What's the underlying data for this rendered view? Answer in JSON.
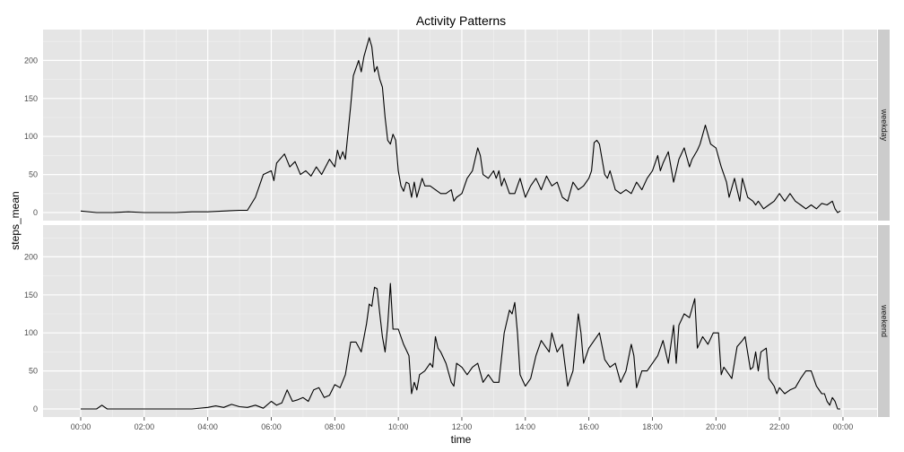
{
  "chart_data": {
    "type": "line",
    "title": "Activity Patterns",
    "xlabel": "time",
    "ylabel": "steps_mean",
    "xlim": [
      "00:00",
      "23:55"
    ],
    "ylim": [
      0,
      240
    ],
    "x_ticks": [
      "00:00",
      "02:00",
      "04:00",
      "06:00",
      "08:00",
      "10:00",
      "12:00",
      "14:00",
      "16:00",
      "18:00",
      "20:00",
      "22:00",
      "00:00"
    ],
    "y_ticks": [
      0,
      50,
      100,
      150,
      200
    ],
    "grid": true,
    "facets": [
      {
        "name": "weekday",
        "points": [
          [
            "00:00",
            2
          ],
          [
            "00:30",
            0
          ],
          [
            "01:00",
            0
          ],
          [
            "01:30",
            1
          ],
          [
            "02:00",
            0
          ],
          [
            "02:30",
            0
          ],
          [
            "03:00",
            0
          ],
          [
            "03:30",
            1
          ],
          [
            "04:00",
            1
          ],
          [
            "04:30",
            2
          ],
          [
            "05:00",
            3
          ],
          [
            "05:15",
            3
          ],
          [
            "05:30",
            20
          ],
          [
            "05:45",
            50
          ],
          [
            "06:00",
            55
          ],
          [
            "06:05",
            42
          ],
          [
            "06:10",
            65
          ],
          [
            "06:25",
            77
          ],
          [
            "06:35",
            60
          ],
          [
            "06:45",
            67
          ],
          [
            "06:55",
            50
          ],
          [
            "07:05",
            55
          ],
          [
            "07:15",
            48
          ],
          [
            "07:25",
            60
          ],
          [
            "07:35",
            50
          ],
          [
            "07:50",
            70
          ],
          [
            "08:00",
            60
          ],
          [
            "08:05",
            82
          ],
          [
            "08:10",
            70
          ],
          [
            "08:15",
            80
          ],
          [
            "08:20",
            70
          ],
          [
            "08:30",
            140
          ],
          [
            "08:35",
            180
          ],
          [
            "08:45",
            200
          ],
          [
            "08:50",
            185
          ],
          [
            "08:55",
            205
          ],
          [
            "09:05",
            230
          ],
          [
            "09:10",
            218
          ],
          [
            "09:15",
            185
          ],
          [
            "09:20",
            192
          ],
          [
            "09:25",
            175
          ],
          [
            "09:30",
            165
          ],
          [
            "09:35",
            125
          ],
          [
            "09:40",
            95
          ],
          [
            "09:45",
            90
          ],
          [
            "09:50",
            103
          ],
          [
            "09:55",
            95
          ],
          [
            "10:00",
            55
          ],
          [
            "10:05",
            35
          ],
          [
            "10:10",
            28
          ],
          [
            "10:15",
            40
          ],
          [
            "10:20",
            38
          ],
          [
            "10:25",
            20
          ],
          [
            "10:30",
            40
          ],
          [
            "10:35",
            20
          ],
          [
            "10:45",
            45
          ],
          [
            "10:50",
            35
          ],
          [
            "11:00",
            35
          ],
          [
            "11:10",
            30
          ],
          [
            "11:20",
            25
          ],
          [
            "11:30",
            25
          ],
          [
            "11:40",
            30
          ],
          [
            "11:45",
            15
          ],
          [
            "11:50",
            20
          ],
          [
            "12:00",
            25
          ],
          [
            "12:10",
            45
          ],
          [
            "12:20",
            55
          ],
          [
            "12:30",
            85
          ],
          [
            "12:35",
            75
          ],
          [
            "12:40",
            50
          ],
          [
            "12:50",
            45
          ],
          [
            "13:00",
            55
          ],
          [
            "13:05",
            45
          ],
          [
            "13:10",
            55
          ],
          [
            "13:15",
            35
          ],
          [
            "13:20",
            45
          ],
          [
            "13:30",
            25
          ],
          [
            "13:40",
            25
          ],
          [
            "13:50",
            45
          ],
          [
            "14:00",
            20
          ],
          [
            "14:10",
            35
          ],
          [
            "14:20",
            45
          ],
          [
            "14:30",
            30
          ],
          [
            "14:40",
            48
          ],
          [
            "14:50",
            35
          ],
          [
            "15:00",
            40
          ],
          [
            "15:10",
            20
          ],
          [
            "15:20",
            15
          ],
          [
            "15:30",
            40
          ],
          [
            "15:40",
            30
          ],
          [
            "15:50",
            35
          ],
          [
            "16:00",
            45
          ],
          [
            "16:05",
            55
          ],
          [
            "16:10",
            92
          ],
          [
            "16:15",
            95
          ],
          [
            "16:20",
            90
          ],
          [
            "16:30",
            50
          ],
          [
            "16:35",
            45
          ],
          [
            "16:40",
            55
          ],
          [
            "16:50",
            30
          ],
          [
            "17:00",
            25
          ],
          [
            "17:10",
            30
          ],
          [
            "17:20",
            25
          ],
          [
            "17:30",
            40
          ],
          [
            "17:40",
            30
          ],
          [
            "17:50",
            45
          ],
          [
            "18:00",
            55
          ],
          [
            "18:10",
            75
          ],
          [
            "18:15",
            55
          ],
          [
            "18:20",
            65
          ],
          [
            "18:30",
            80
          ],
          [
            "18:40",
            40
          ],
          [
            "18:50",
            70
          ],
          [
            "19:00",
            85
          ],
          [
            "19:10",
            60
          ],
          [
            "19:15",
            70
          ],
          [
            "19:25",
            82
          ],
          [
            "19:30",
            90
          ],
          [
            "19:40",
            115
          ],
          [
            "19:50",
            90
          ],
          [
            "20:00",
            85
          ],
          [
            "20:10",
            60
          ],
          [
            "20:20",
            40
          ],
          [
            "20:25",
            20
          ],
          [
            "20:35",
            45
          ],
          [
            "20:40",
            30
          ],
          [
            "20:45",
            15
          ],
          [
            "20:50",
            45
          ],
          [
            "21:00",
            20
          ],
          [
            "21:10",
            15
          ],
          [
            "21:15",
            10
          ],
          [
            "21:20",
            15
          ],
          [
            "21:30",
            5
          ],
          [
            "21:40",
            10
          ],
          [
            "21:50",
            15
          ],
          [
            "22:00",
            25
          ],
          [
            "22:10",
            15
          ],
          [
            "22:20",
            25
          ],
          [
            "22:30",
            15
          ],
          [
            "22:40",
            10
          ],
          [
            "22:50",
            5
          ],
          [
            "23:00",
            10
          ],
          [
            "23:10",
            5
          ],
          [
            "23:20",
            12
          ],
          [
            "23:30",
            10
          ],
          [
            "23:40",
            15
          ],
          [
            "23:45",
            5
          ],
          [
            "23:50",
            0
          ],
          [
            "23:55",
            2
          ]
        ]
      },
      {
        "name": "weekend",
        "points": [
          [
            "00:00",
            0
          ],
          [
            "00:30",
            0
          ],
          [
            "00:40",
            5
          ],
          [
            "00:50",
            0
          ],
          [
            "01:00",
            0
          ],
          [
            "01:30",
            0
          ],
          [
            "02:00",
            0
          ],
          [
            "02:30",
            0
          ],
          [
            "03:00",
            0
          ],
          [
            "03:30",
            0
          ],
          [
            "04:00",
            2
          ],
          [
            "04:15",
            4
          ],
          [
            "04:30",
            2
          ],
          [
            "04:45",
            6
          ],
          [
            "05:00",
            3
          ],
          [
            "05:15",
            2
          ],
          [
            "05:30",
            5
          ],
          [
            "05:45",
            1
          ],
          [
            "06:00",
            10
          ],
          [
            "06:10",
            5
          ],
          [
            "06:20",
            8
          ],
          [
            "06:30",
            25
          ],
          [
            "06:40",
            10
          ],
          [
            "06:50",
            12
          ],
          [
            "07:00",
            15
          ],
          [
            "07:10",
            10
          ],
          [
            "07:20",
            25
          ],
          [
            "07:30",
            28
          ],
          [
            "07:40",
            15
          ],
          [
            "07:50",
            18
          ],
          [
            "08:00",
            32
          ],
          [
            "08:10",
            28
          ],
          [
            "08:20",
            45
          ],
          [
            "08:30",
            88
          ],
          [
            "08:40",
            88
          ],
          [
            "08:50",
            75
          ],
          [
            "09:00",
            112
          ],
          [
            "09:05",
            138
          ],
          [
            "09:10",
            135
          ],
          [
            "09:15",
            160
          ],
          [
            "09:20",
            158
          ],
          [
            "09:25",
            125
          ],
          [
            "09:30",
            95
          ],
          [
            "09:35",
            75
          ],
          [
            "09:40",
            110
          ],
          [
            "09:45",
            165
          ],
          [
            "09:50",
            105
          ],
          [
            "10:00",
            105
          ],
          [
            "10:10",
            85
          ],
          [
            "10:20",
            70
          ],
          [
            "10:25",
            20
          ],
          [
            "10:30",
            35
          ],
          [
            "10:35",
            25
          ],
          [
            "10:40",
            45
          ],
          [
            "10:50",
            50
          ],
          [
            "11:00",
            60
          ],
          [
            "11:05",
            55
          ],
          [
            "11:10",
            95
          ],
          [
            "11:15",
            80
          ],
          [
            "11:20",
            75
          ],
          [
            "11:30",
            60
          ],
          [
            "11:40",
            35
          ],
          [
            "11:45",
            30
          ],
          [
            "11:50",
            60
          ],
          [
            "12:00",
            55
          ],
          [
            "12:10",
            45
          ],
          [
            "12:20",
            55
          ],
          [
            "12:30",
            60
          ],
          [
            "12:40",
            35
          ],
          [
            "12:50",
            45
          ],
          [
            "13:00",
            35
          ],
          [
            "13:10",
            35
          ],
          [
            "13:20",
            100
          ],
          [
            "13:30",
            130
          ],
          [
            "13:35",
            125
          ],
          [
            "13:40",
            140
          ],
          [
            "13:45",
            100
          ],
          [
            "13:50",
            45
          ],
          [
            "14:00",
            30
          ],
          [
            "14:10",
            40
          ],
          [
            "14:20",
            70
          ],
          [
            "14:30",
            90
          ],
          [
            "14:40",
            80
          ],
          [
            "14:45",
            75
          ],
          [
            "14:50",
            100
          ],
          [
            "15:00",
            75
          ],
          [
            "15:10",
            85
          ],
          [
            "15:20",
            30
          ],
          [
            "15:30",
            50
          ],
          [
            "15:40",
            125
          ],
          [
            "15:45",
            100
          ],
          [
            "15:50",
            60
          ],
          [
            "16:00",
            80
          ],
          [
            "16:10",
            90
          ],
          [
            "16:20",
            100
          ],
          [
            "16:30",
            65
          ],
          [
            "16:40",
            55
          ],
          [
            "16:50",
            60
          ],
          [
            "17:00",
            35
          ],
          [
            "17:10",
            50
          ],
          [
            "17:20",
            85
          ],
          [
            "17:25",
            70
          ],
          [
            "17:30",
            28
          ],
          [
            "17:40",
            50
          ],
          [
            "17:50",
            50
          ],
          [
            "18:00",
            60
          ],
          [
            "18:10",
            70
          ],
          [
            "18:20",
            90
          ],
          [
            "18:30",
            60
          ],
          [
            "18:40",
            110
          ],
          [
            "18:45",
            60
          ],
          [
            "18:50",
            110
          ],
          [
            "19:00",
            125
          ],
          [
            "19:10",
            120
          ],
          [
            "19:20",
            145
          ],
          [
            "19:25",
            80
          ],
          [
            "19:35",
            95
          ],
          [
            "19:45",
            85
          ],
          [
            "19:55",
            100
          ],
          [
            "20:05",
            100
          ],
          [
            "20:10",
            45
          ],
          [
            "20:15",
            55
          ],
          [
            "20:20",
            50
          ],
          [
            "20:30",
            40
          ],
          [
            "20:40",
            82
          ],
          [
            "20:50",
            90
          ],
          [
            "20:55",
            95
          ],
          [
            "21:05",
            52
          ],
          [
            "21:10",
            55
          ],
          [
            "21:15",
            75
          ],
          [
            "21:20",
            50
          ],
          [
            "21:25",
            75
          ],
          [
            "21:35",
            80
          ],
          [
            "21:40",
            40
          ],
          [
            "21:50",
            30
          ],
          [
            "21:55",
            20
          ],
          [
            "22:00",
            28
          ],
          [
            "22:10",
            20
          ],
          [
            "22:20",
            25
          ],
          [
            "22:30",
            28
          ],
          [
            "22:40",
            40
          ],
          [
            "22:50",
            50
          ],
          [
            "23:00",
            50
          ],
          [
            "23:10",
            30
          ],
          [
            "23:20",
            20
          ],
          [
            "23:25",
            20
          ],
          [
            "23:30",
            10
          ],
          [
            "23:35",
            5
          ],
          [
            "23:40",
            15
          ],
          [
            "23:45",
            10
          ],
          [
            "23:50",
            0
          ],
          [
            "23:55",
            0
          ]
        ]
      }
    ],
    "colors": {
      "panel_bg": "#e5e5e5",
      "grid_major": "#ffffff",
      "grid_minor": "#f2f2f2",
      "strip_bg": "#cccccc",
      "line": "#000000"
    }
  }
}
